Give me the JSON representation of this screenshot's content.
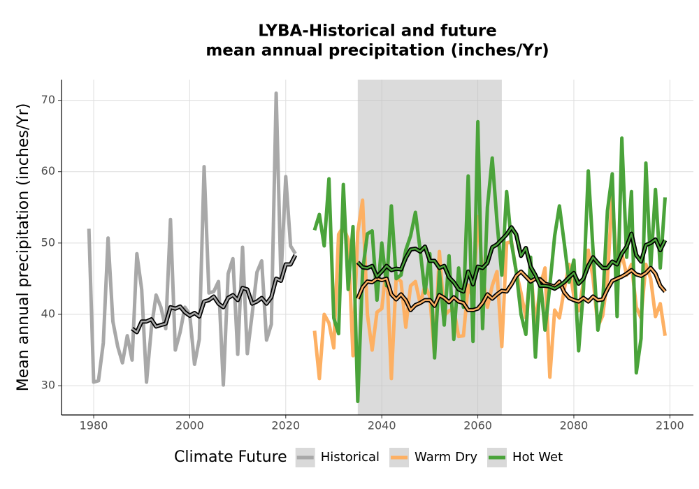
{
  "chart_data": {
    "type": "line",
    "title": [
      "LYBA-Historical and future",
      "mean annual precipitation (inches/Yr)"
    ],
    "y_label": "Mean annual precipitation (inches/Yr)",
    "legend_title": "Climate Future",
    "legend": "bottom",
    "grid": true,
    "shade": [
      2035,
      2065
    ],
    "xlim": [
      1973.3,
      2104.9
    ],
    "ylim": [
      25.9,
      72.9
    ],
    "xticks": [
      1980,
      2000,
      2020,
      2040,
      2060,
      2080,
      2100
    ],
    "yticks": [
      30,
      40,
      50,
      60,
      70
    ],
    "series": [
      {
        "name": "Historical",
        "color": "#a8a8a8",
        "x": [
          1979,
          1980,
          1981,
          1982,
          1983,
          1984,
          1985,
          1986,
          1987,
          1988,
          1989,
          1990,
          1991,
          1992,
          1993,
          1994,
          1995,
          1996,
          1997,
          1998,
          1999,
          2000,
          2001,
          2002,
          2003,
          2004,
          2005,
          2006,
          2007,
          2008,
          2009,
          2010,
          2011,
          2012,
          2013,
          2014,
          2015,
          2016,
          2017,
          2018,
          2019,
          2020,
          2021,
          2022
        ],
        "values": [
          52,
          30.5,
          30.7,
          36,
          50.7,
          39,
          35.5,
          33.2,
          37,
          33.6,
          48.5,
          43.5,
          30.5,
          38,
          42.7,
          41,
          38,
          53.3,
          35,
          37.5,
          41,
          40,
          33,
          36.5,
          60.7,
          43,
          43.2,
          44.6,
          30.1,
          45.7,
          47.8,
          34.4,
          49.4,
          34.5,
          40,
          45.9,
          47.5,
          36.4,
          38.6,
          71,
          45,
          59.3,
          49.6,
          48.5
        ],
        "mean_x": [
          1988,
          1989,
          1990,
          1991,
          1992,
          1993,
          1994,
          1995,
          1996,
          1997,
          1998,
          1999,
          2000,
          2001,
          2002,
          2003,
          2004,
          2005,
          2006,
          2007,
          2008,
          2009,
          2010,
          2011,
          2012,
          2013,
          2014,
          2015,
          2016,
          2017,
          2018,
          2019,
          2020,
          2021,
          2022
        ],
        "mean_values": [
          38,
          37.5,
          39,
          39,
          39.3,
          38.3,
          38.5,
          38.7,
          41,
          40.8,
          41.1,
          40.3,
          39.8,
          40.2,
          39.7,
          41.8,
          42,
          42.5,
          41.5,
          41,
          42.3,
          42.7,
          42,
          43.7,
          43.5,
          41.5,
          41.8,
          42.3,
          41.5,
          42.4,
          45,
          44.7,
          47,
          47,
          48.3
        ]
      },
      {
        "name": "Warm Dry",
        "color": "#fdb063",
        "x": [
          2026,
          2027,
          2028,
          2029,
          2030,
          2031,
          2032,
          2033,
          2034,
          2035,
          2036,
          2037,
          2038,
          2039,
          2040,
          2041,
          2042,
          2043,
          2044,
          2045,
          2046,
          2047,
          2048,
          2049,
          2050,
          2051,
          2052,
          2053,
          2054,
          2055,
          2056,
          2057,
          2058,
          2059,
          2060,
          2061,
          2062,
          2063,
          2064,
          2065,
          2066,
          2067,
          2068,
          2069,
          2070,
          2071,
          2072,
          2073,
          2074,
          2075,
          2076,
          2077,
          2078,
          2079,
          2080,
          2081,
          2082,
          2083,
          2084,
          2085,
          2086,
          2087,
          2088,
          2089,
          2090,
          2091,
          2092,
          2093,
          2094,
          2095,
          2096,
          2097,
          2098,
          2099
        ],
        "values": [
          37.7,
          31,
          40,
          38.8,
          35.3,
          51.2,
          52.3,
          50.5,
          34.2,
          51.5,
          56,
          40,
          35,
          40.3,
          40.8,
          47,
          31,
          45.2,
          44.6,
          38.2,
          44,
          44.6,
          41.5,
          44,
          42.5,
          34.2,
          48.8,
          39.8,
          40.5,
          40.8,
          36.9,
          37,
          44.1,
          42.2,
          53.7,
          45.5,
          41,
          44,
          46,
          35.5,
          50,
          50.2,
          46,
          43,
          39.5,
          46.5,
          38.5,
          44,
          46.5,
          31.2,
          40.6,
          39.5,
          43.5,
          47,
          42.5,
          40.5,
          44.5,
          49,
          45.1,
          38.3,
          39.8,
          45,
          57,
          45.5,
          48.5,
          45.5,
          47,
          41,
          39.5,
          47,
          45,
          39.7,
          41.5,
          37
        ],
        "mean_x": [
          2035,
          2036,
          2037,
          2038,
          2039,
          2040,
          2041,
          2042,
          2043,
          2044,
          2045,
          2046,
          2047,
          2048,
          2049,
          2050,
          2051,
          2052,
          2053,
          2054,
          2055,
          2056,
          2057,
          2058,
          2059,
          2060,
          2061,
          2062,
          2063,
          2064,
          2065,
          2066,
          2067,
          2068,
          2069,
          2070,
          2071,
          2072,
          2073,
          2074,
          2075,
          2076,
          2077,
          2078,
          2079,
          2080,
          2081,
          2082,
          2083,
          2084,
          2085,
          2086,
          2087,
          2088,
          2089,
          2090,
          2091,
          2092,
          2093,
          2094,
          2095,
          2096,
          2097,
          2098,
          2099
        ],
        "mean_values": [
          42.2,
          43.8,
          44.6,
          44.5,
          45,
          44.8,
          45,
          42.8,
          42.1,
          42.8,
          42,
          40.6,
          41.3,
          41.6,
          42,
          42,
          41.2,
          42.7,
          42.3,
          41.7,
          42.4,
          41.8,
          41.6,
          40.6,
          40.6,
          40.8,
          41.6,
          42.8,
          42.2,
          42.8,
          43.3,
          43.2,
          44.2,
          45.4,
          46,
          45.3,
          44.6,
          45,
          44.9,
          44.3,
          44.1,
          43.9,
          44.6,
          43.1,
          42.3,
          42,
          41.8,
          42.3,
          41.8,
          42.5,
          42,
          42.1,
          43.5,
          44.7,
          45,
          45.3,
          45.7,
          46.2,
          45.6,
          45.4,
          45.8,
          46.5,
          45.7,
          44,
          43.2
        ]
      },
      {
        "name": "Hot Wet",
        "color": "#4aa33a",
        "x": [
          2026,
          2027,
          2028,
          2029,
          2030,
          2031,
          2032,
          2033,
          2034,
          2035,
          2036,
          2037,
          2038,
          2039,
          2040,
          2041,
          2042,
          2043,
          2044,
          2045,
          2046,
          2047,
          2048,
          2049,
          2050,
          2051,
          2052,
          2053,
          2054,
          2055,
          2056,
          2057,
          2058,
          2059,
          2060,
          2061,
          2062,
          2063,
          2064,
          2065,
          2066,
          2067,
          2068,
          2069,
          2070,
          2071,
          2072,
          2073,
          2074,
          2075,
          2076,
          2077,
          2078,
          2079,
          2080,
          2081,
          2082,
          2083,
          2084,
          2085,
          2086,
          2087,
          2088,
          2089,
          2090,
          2091,
          2092,
          2093,
          2094,
          2095,
          2096,
          2097,
          2098,
          2099
        ],
        "values": [
          51.8,
          54,
          49.6,
          59,
          39.5,
          37.3,
          58.2,
          43.5,
          52.3,
          27.8,
          46,
          51.3,
          51.7,
          42,
          50,
          44,
          55.2,
          45,
          45.5,
          49,
          51,
          54.3,
          49,
          43,
          48.5,
          33.9,
          46,
          38.5,
          48.2,
          36.5,
          46.5,
          41,
          59.4,
          36.2,
          67,
          38,
          55,
          61.9,
          53,
          45.5,
          57.2,
          50,
          46,
          40,
          37.2,
          48,
          34,
          45,
          37.8,
          44,
          51,
          55.2,
          50,
          44.5,
          47.6,
          34.9,
          43.5,
          60.1,
          49,
          37.8,
          41.6,
          54.5,
          59.7,
          39.7,
          64.7,
          48,
          57.2,
          31.8,
          36.6,
          61.2,
          46.5,
          57.5,
          46.5,
          56.4
        ],
        "mean_x": [
          2035,
          2036,
          2037,
          2038,
          2039,
          2040,
          2041,
          2042,
          2043,
          2044,
          2045,
          2046,
          2047,
          2048,
          2049,
          2050,
          2051,
          2052,
          2053,
          2054,
          2055,
          2056,
          2057,
          2058,
          2059,
          2060,
          2061,
          2062,
          2063,
          2064,
          2065,
          2066,
          2067,
          2068,
          2069,
          2070,
          2071,
          2072,
          2073,
          2074,
          2075,
          2076,
          2077,
          2078,
          2079,
          2080,
          2081,
          2082,
          2083,
          2084,
          2085,
          2086,
          2087,
          2088,
          2089,
          2090,
          2091,
          2092,
          2093,
          2094,
          2095,
          2096,
          2097,
          2098,
          2099
        ],
        "mean_values": [
          47.3,
          46.6,
          46.5,
          46.8,
          45.3,
          46,
          46.8,
          46.2,
          46.4,
          46.3,
          47.9,
          49.1,
          49.2,
          48.8,
          49.5,
          47.5,
          47.5,
          46.5,
          46.8,
          45.2,
          44.5,
          43.5,
          43.2,
          46,
          44.2,
          46.7,
          46.5,
          47.2,
          49.4,
          49.8,
          50.5,
          51.2,
          52.2,
          51.2,
          48.2,
          49.3,
          46.7,
          45.5,
          44,
          44,
          43.9,
          43.6,
          44,
          44.5,
          45.2,
          45.8,
          44.3,
          45,
          46.8,
          48,
          47.2,
          46.5,
          46.5,
          47.4,
          47,
          48.5,
          49.5,
          51.3,
          48.3,
          47.4,
          49.7,
          50,
          50.5,
          49,
          50.4
        ]
      }
    ]
  }
}
